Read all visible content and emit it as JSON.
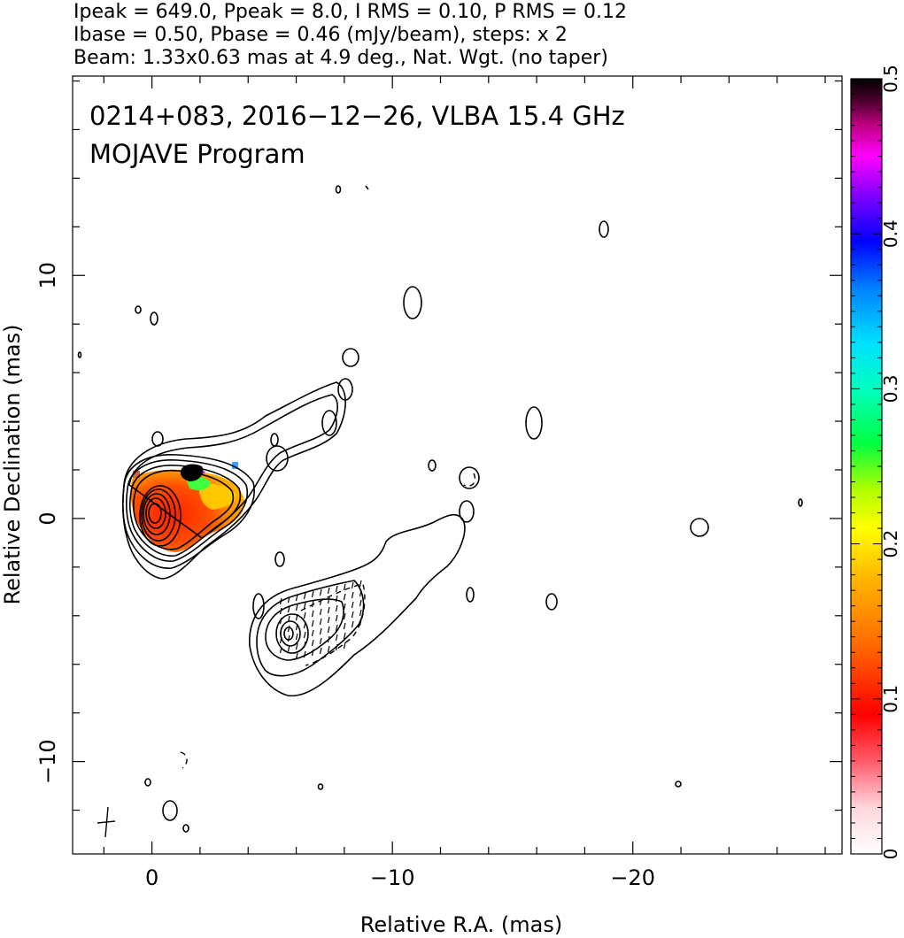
{
  "header_lines": [
    "Ipeak = 649.0, Ppeak = 8.0, I RMS = 0.10, P RMS = 0.12",
    "Ibase = 0.50, Pbase = 0.46 (mJy/beam), steps: x 2",
    "Beam: 1.33x0.63 mas at 4.9 deg., Nat. Wgt. (no taper)"
  ],
  "plot_title": "0214+083, 2016−12−26, VLBA 15.4 GHz",
  "plot_subtitle": "MOJAVE Program",
  "chart_data": {
    "type": "heatmap",
    "title": "0214+083, 2016−12−26, VLBA 15.4 GHz",
    "subtitle": "MOJAVE Program",
    "xlabel": "Relative R.A. (mas)",
    "ylabel": "Relative Declination (mas)",
    "xlim": [
      3.3,
      -28.7
    ],
    "ylim": [
      -13.8,
      18.2
    ],
    "x_direction": "decreasing to the right",
    "x_ticks": [
      0,
      -10,
      -20
    ],
    "x_tick_labels": [
      "0",
      "−10",
      "−20"
    ],
    "y_ticks": [
      -10,
      0,
      10
    ],
    "y_tick_labels": [
      "−10",
      "0",
      "10"
    ],
    "colorbar": {
      "range": [
        0,
        0.5
      ],
      "ticks": [
        0,
        0.1,
        0.2,
        0.3,
        0.4,
        0.5
      ],
      "tick_labels": [
        "0",
        "0.1",
        "0.2",
        "0.3",
        "0.4",
        "0.5"
      ],
      "placement": "right"
    },
    "image": {
      "Ipeak_mJy_per_beam": 649.0,
      "Ppeak_mJy_per_beam": 8.0,
      "I_RMS": 0.1,
      "P_RMS": 0.12,
      "Ibase": 0.5,
      "Pbase": 0.46,
      "contour_step_factor": 2,
      "beam_major_mas": 1.33,
      "beam_minor_mas": 0.63,
      "beam_pa_deg": 4.9,
      "weighting": "Natural, no taper"
    },
    "core": {
      "x": 0,
      "y": 0
    },
    "components": [
      {
        "x": 0,
        "y": 0,
        "description": "core"
      },
      {
        "x": -6.1,
        "y": -4.9,
        "description": "ghost/secondary feature"
      }
    ],
    "grid": false
  },
  "colors": {
    "axes": "#000000",
    "contour": "#000000",
    "background": "#ffffff",
    "colormap": [
      "#ffffff",
      "#ff0000",
      "#ff8000",
      "#ffff00",
      "#00ff00",
      "#00ffff",
      "#0000ff",
      "#ff00ff",
      "#000000"
    ]
  }
}
